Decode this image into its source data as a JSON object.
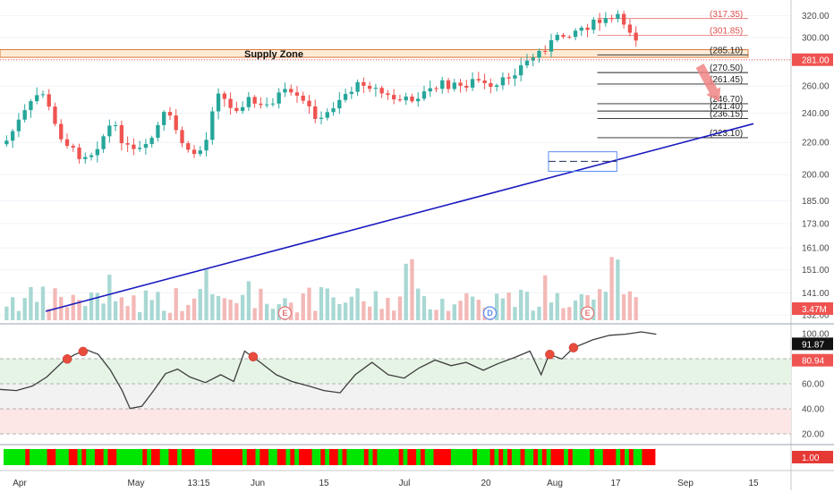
{
  "chart_data": [
    {
      "type": "candlestick",
      "title": "",
      "x_dates": {
        "start": "2020-03-30",
        "end": "2020-08-24"
      },
      "price_axis": {
        "ticks": [
          "320.00",
          "300.00",
          "280.00",
          "260.00",
          "240.00",
          "220.00",
          "200.00",
          "185.00",
          "173.00",
          "161.00",
          "151.00",
          "141.00",
          "132.00"
        ],
        "scale": "log",
        "range": [
          130,
          330
        ]
      },
      "last_price": "281.00",
      "last_price_color": "#ef5350",
      "volume_badge": "3.47M",
      "volume_badge_color": "#ef5350",
      "supply_zone": {
        "label": "Supply Zone",
        "low": 283,
        "high": 289.5,
        "color": "#f5c9a0"
      },
      "fib_levels": [
        {
          "label": "(317.35)",
          "value": 317.35,
          "color": "#e05050"
        },
        {
          "label": "(301.85)",
          "value": 301.85,
          "color": "#e05050"
        },
        {
          "label": "(285.10)",
          "value": 285.1,
          "color": "#222222"
        },
        {
          "label": "(270.50)",
          "value": 270.5,
          "color": "#222222"
        },
        {
          "label": "(261.45)",
          "value": 261.45,
          "color": "#222222"
        },
        {
          "label": "(246.70)",
          "value": 246.7,
          "color": "#222222"
        },
        {
          "label": "(241.40)",
          "value": 241.4,
          "color": "#222222"
        },
        {
          "label": "(236.15)",
          "value": 236.15,
          "color": "#222222"
        },
        {
          "label": "(223.10)",
          "value": 223.1,
          "color": "#222222"
        }
      ],
      "trendline": {
        "from": {
          "date": "2020-04-08",
          "price": 133.5
        },
        "to": {
          "date": "2020-08-31",
          "price": 232.5
        },
        "color": "#1a1abf"
      },
      "consolidation_box": {
        "from": "2020-07-20",
        "to": "2020-08-03",
        "low": 202,
        "high": 214,
        "color": "#5b8def"
      },
      "projection_arrow": {
        "from": {
          "date": "2020-08-20",
          "price": 276
        },
        "to": {
          "date": "2020-08-24",
          "price": 248
        },
        "color": "#ef8585"
      },
      "events": [
        {
          "label": "E",
          "date": "2020-05-27",
          "color": "#e57373"
        },
        {
          "label": "D",
          "date": "2020-07-08",
          "color": "#5b8def"
        },
        {
          "label": "E",
          "date": "2020-07-28",
          "color": "#e57373"
        }
      ],
      "candle_colors": {
        "up": "#26a69a",
        "down": "#ef5350"
      },
      "price_path_pct": [
        [
          0,
          0.5
        ],
        [
          0.02,
          0.4
        ],
        [
          0.045,
          0.29
        ],
        [
          0.065,
          0.46
        ],
        [
          0.09,
          0.56
        ],
        [
          0.11,
          0.55
        ],
        [
          0.135,
          0.43
        ],
        [
          0.16,
          0.55
        ],
        [
          0.18,
          0.53
        ],
        [
          0.205,
          0.38
        ],
        [
          0.235,
          0.56
        ],
        [
          0.255,
          0.53
        ],
        [
          0.27,
          0.28
        ],
        [
          0.29,
          0.38
        ],
        [
          0.31,
          0.33
        ],
        [
          0.33,
          0.37
        ],
        [
          0.355,
          0.3
        ],
        [
          0.38,
          0.34
        ],
        [
          0.405,
          0.42
        ],
        [
          0.43,
          0.32
        ],
        [
          0.46,
          0.26
        ],
        [
          0.49,
          0.32
        ],
        [
          0.51,
          0.34
        ],
        [
          0.535,
          0.31
        ],
        [
          0.56,
          0.27
        ],
        [
          0.585,
          0.28
        ],
        [
          0.605,
          0.25
        ],
        [
          0.625,
          0.3
        ],
        [
          0.645,
          0.24
        ],
        [
          0.665,
          0.19
        ],
        [
          0.685,
          0.14
        ],
        [
          0.705,
          0.09
        ],
        [
          0.73,
          0.05
        ],
        [
          0.76,
          0.02
        ],
        [
          0.79,
          0.0
        ],
        [
          0.81,
          0.08
        ]
      ]
    },
    {
      "type": "line",
      "title": "",
      "yaxis_ticks": [
        "100.00",
        "80.00",
        "60.00",
        "40.00",
        "20.00"
      ],
      "range": [
        15,
        105
      ],
      "bands": [
        {
          "low": 60,
          "high": 80,
          "color": "#e6f4e6"
        },
        {
          "low": 40,
          "high": 60,
          "color": "#f2f2f2"
        },
        {
          "low": 20,
          "high": 40,
          "color": "#fde6e6"
        }
      ],
      "current_value": "91.87",
      "current_color": "#111111",
      "level_badge": "80.94",
      "level_color": "#ef5350",
      "path": [
        [
          0,
          0.55
        ],
        [
          0.02,
          0.56
        ],
        [
          0.04,
          0.52
        ],
        [
          0.06,
          0.44
        ],
        [
          0.08,
          0.3
        ],
        [
          0.095,
          0.24
        ],
        [
          0.11,
          0.2
        ],
        [
          0.125,
          0.24
        ],
        [
          0.14,
          0.38
        ],
        [
          0.155,
          0.56
        ],
        [
          0.165,
          0.72
        ],
        [
          0.18,
          0.7
        ],
        [
          0.195,
          0.56
        ],
        [
          0.21,
          0.41
        ],
        [
          0.225,
          0.37
        ],
        [
          0.24,
          0.44
        ],
        [
          0.26,
          0.49
        ],
        [
          0.28,
          0.42
        ],
        [
          0.295,
          0.48
        ],
        [
          0.31,
          0.21
        ],
        [
          0.33,
          0.31
        ],
        [
          0.35,
          0.42
        ],
        [
          0.37,
          0.48
        ],
        [
          0.39,
          0.52
        ],
        [
          0.41,
          0.56
        ],
        [
          0.43,
          0.58
        ],
        [
          0.45,
          0.42
        ],
        [
          0.47,
          0.31
        ],
        [
          0.49,
          0.42
        ],
        [
          0.51,
          0.45
        ],
        [
          0.53,
          0.36
        ],
        [
          0.55,
          0.29
        ],
        [
          0.57,
          0.34
        ],
        [
          0.59,
          0.31
        ],
        [
          0.61,
          0.38
        ],
        [
          0.63,
          0.32
        ],
        [
          0.65,
          0.27
        ],
        [
          0.67,
          0.21
        ],
        [
          0.685,
          0.42
        ],
        [
          0.695,
          0.24
        ],
        [
          0.71,
          0.28
        ],
        [
          0.725,
          0.18
        ],
        [
          0.75,
          0.11
        ],
        [
          0.77,
          0.07
        ],
        [
          0.79,
          0.06
        ],
        [
          0.81,
          0.04
        ],
        [
          0.83,
          0.06
        ]
      ],
      "markers_x": [
        0.085,
        0.105,
        0.32,
        0.695,
        0.725
      ],
      "marker_color": "#e74c3c"
    },
    {
      "type": "heatmap",
      "title": "",
      "badge": "1.00",
      "badge_color": "#e53935",
      "colors": {
        "up": "#00e600",
        "down": "#ff0000"
      }
    }
  ],
  "x_axis_labels": [
    "Apr",
    "May",
    "13:15",
    "Jun",
    "15",
    "Jul",
    "20",
    "Aug",
    "17",
    "Sep",
    "15"
  ]
}
